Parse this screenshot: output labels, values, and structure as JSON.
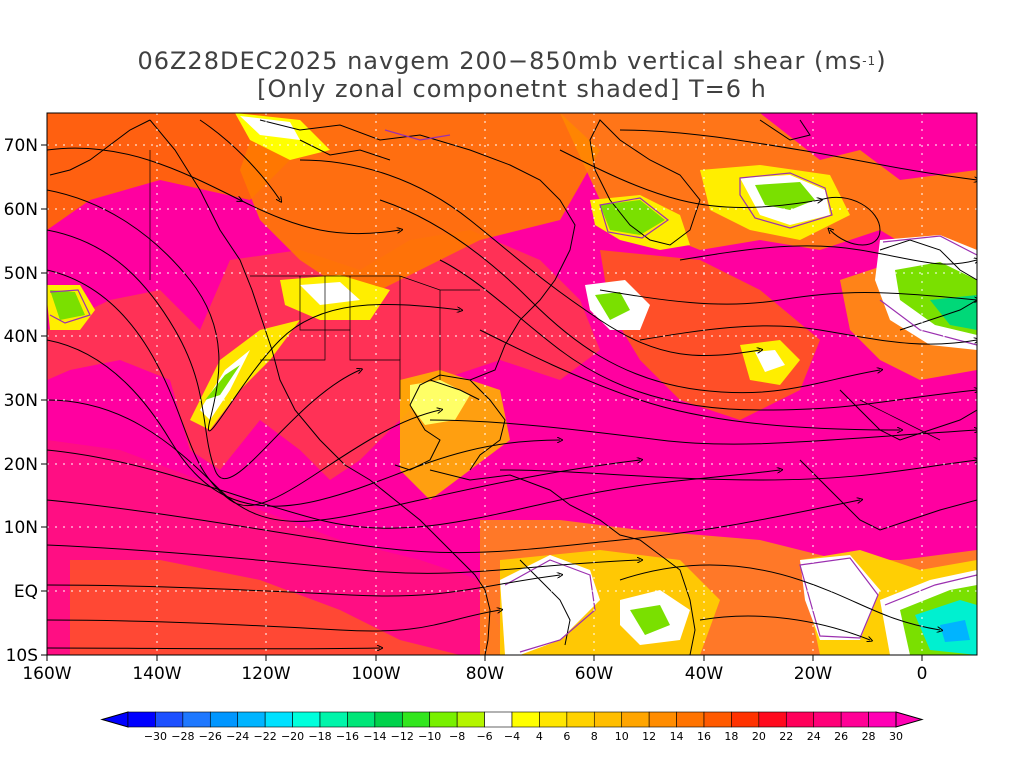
{
  "title": {
    "line1_prefix": "06Z28DEC2025 navgem 200−850mb vertical shear (ms",
    "line1_sup": "-1",
    "line1_suffix": ")",
    "line2": "[Only zonal componetnt shaded] T=6 h"
  },
  "map": {
    "lat_labels": [
      "70N",
      "60N",
      "50N",
      "40N",
      "30N",
      "20N",
      "10N",
      "EQ",
      "10S"
    ],
    "lon_labels": [
      "160W",
      "140W",
      "120W",
      "100W",
      "80W",
      "60W",
      "40W",
      "20W",
      "0"
    ],
    "domain": {
      "lon": [
        -160,
        10
      ],
      "lat": [
        -10,
        75
      ]
    },
    "grid": "dotted"
  },
  "colorbar": {
    "labels": [
      "-30",
      "-28",
      "-26",
      "-24",
      "-22",
      "-20",
      "-18",
      "-16",
      "-14",
      "-12",
      "-10",
      "-8",
      "-6",
      "-4",
      "4",
      "6",
      "8",
      "10",
      "12",
      "14",
      "16",
      "18",
      "20",
      "22",
      "24",
      "26",
      "28",
      "30"
    ],
    "colors": [
      "#0000ff",
      "#1d50ff",
      "#1e78ff",
      "#0096ff",
      "#00b4ff",
      "#00e1ff",
      "#00ffdc",
      "#00f5aa",
      "#00e678",
      "#00d24b",
      "#32e61e",
      "#78f000",
      "#b4f500",
      "#ffffff",
      "#ffff00",
      "#ffe600",
      "#ffd200",
      "#ffbe00",
      "#ffa500",
      "#ff8c00",
      "#ff7300",
      "#ff5a00",
      "#ff3200",
      "#ff0a1e",
      "#ff005a",
      "#ff0078",
      "#ff0096",
      "#ff00b4"
    ]
  }
}
